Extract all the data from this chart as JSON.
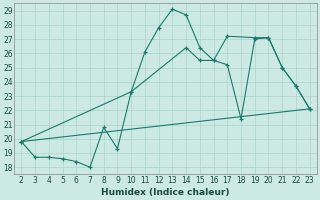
{
  "xlabel": "Humidex (Indice chaleur)",
  "bg_color": "#cceae3",
  "grid_color": "#aad4cc",
  "line_color": "#1a7a6e",
  "series1": {
    "x": [
      2,
      3,
      4,
      5,
      6,
      7,
      8,
      9,
      10,
      11,
      12,
      13,
      14,
      15,
      16,
      17,
      18,
      19,
      20,
      21,
      22,
      23
    ],
    "y": [
      19.8,
      18.7,
      18.7,
      18.6,
      18.4,
      18.0,
      20.8,
      19.3,
      23.3,
      26.1,
      27.8,
      29.1,
      28.7,
      26.4,
      25.5,
      25.2,
      21.4,
      27.0,
      27.1,
      25.0,
      23.7,
      22.1
    ]
  },
  "series2": {
    "x": [
      2,
      23
    ],
    "y": [
      19.8,
      22.1
    ]
  },
  "series3": {
    "x": [
      2,
      10,
      14,
      15,
      16,
      17,
      19,
      20,
      21,
      22,
      23
    ],
    "y": [
      19.8,
      23.3,
      26.4,
      25.5,
      25.5,
      27.2,
      27.1,
      27.1,
      25.0,
      23.7,
      22.1
    ]
  },
  "xlim": [
    1.5,
    23.5
  ],
  "ylim": [
    17.5,
    29.5
  ],
  "yticks": [
    18,
    19,
    20,
    21,
    22,
    23,
    24,
    25,
    26,
    27,
    28,
    29
  ],
  "xticks": [
    2,
    3,
    4,
    5,
    6,
    7,
    8,
    9,
    10,
    11,
    12,
    13,
    14,
    15,
    16,
    17,
    18,
    19,
    20,
    21,
    22,
    23
  ],
  "tick_fontsize": 5.5,
  "xlabel_fontsize": 6.5
}
